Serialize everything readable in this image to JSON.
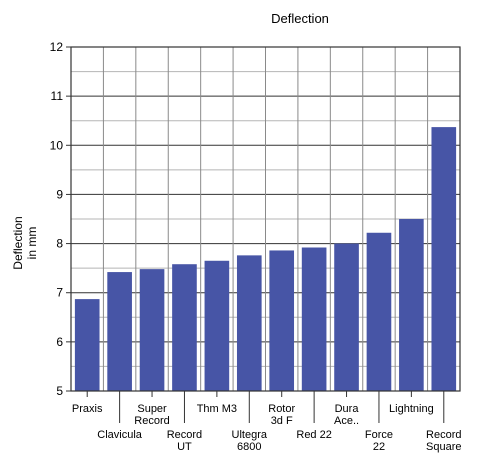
{
  "chart_data": {
    "type": "bar",
    "title": "Deflection",
    "xlabel": "",
    "ylabel": [
      "Deflection",
      "in mm"
    ],
    "ylim": [
      5,
      12
    ],
    "yticks": [
      5,
      6,
      7,
      8,
      9,
      10,
      11,
      12
    ],
    "grid": true,
    "bar_color": "#4755a6",
    "categories": [
      [
        "Praxis"
      ],
      [
        "Clavicula"
      ],
      [
        "Super",
        "Record"
      ],
      [
        "Record",
        "UT"
      ],
      [
        "Thm M3"
      ],
      [
        "Ultegra",
        "6800"
      ],
      [
        "Rotor",
        "3d F"
      ],
      [
        "Red 22"
      ],
      [
        "Dura",
        "Ace.."
      ],
      [
        "Force",
        "22"
      ],
      [
        "Lightning"
      ],
      [
        "Record",
        "Square"
      ]
    ],
    "values": [
      6.87,
      7.42,
      7.48,
      7.58,
      7.65,
      7.76,
      7.86,
      7.92,
      8.0,
      8.22,
      8.5,
      10.37
    ]
  }
}
